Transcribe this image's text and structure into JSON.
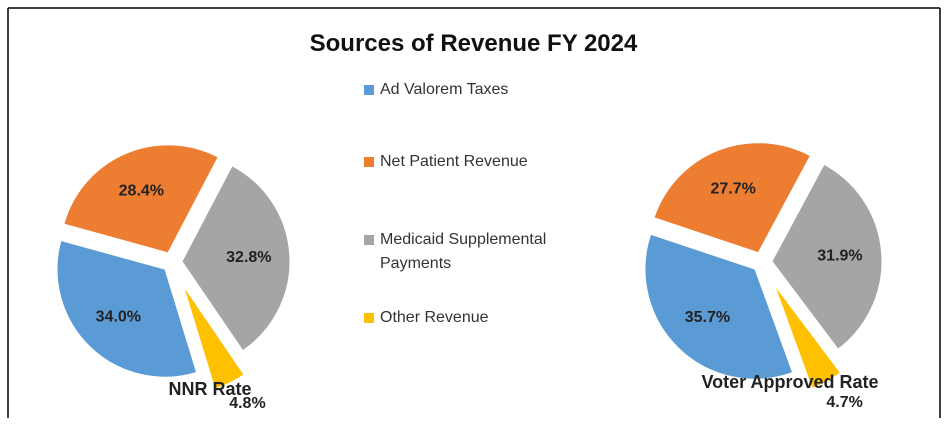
{
  "title": "Sources of Revenue FY 2024",
  "categories": [
    "Ad Valorem Taxes",
    "Net Patient Revenue",
    "Medicaid Supplemental Payments",
    "Other Revenue"
  ],
  "colors": [
    "#5b9bd5",
    "#ed7d31",
    "#a5a5a5",
    "#ffc000"
  ],
  "chart_data": [
    {
      "type": "pie",
      "label": "NNR Rate",
      "values": [
        34.0,
        28.4,
        32.8,
        4.8
      ],
      "value_labels": [
        "34.0%",
        "28.4%",
        "32.8%",
        "4.8%"
      ]
    },
    {
      "type": "pie",
      "label": "Voter Approved Rate",
      "values": [
        35.7,
        27.7,
        31.9,
        4.7
      ],
      "value_labels": [
        "35.7%",
        "27.7%",
        "31.9%",
        "4.7%"
      ]
    }
  ]
}
